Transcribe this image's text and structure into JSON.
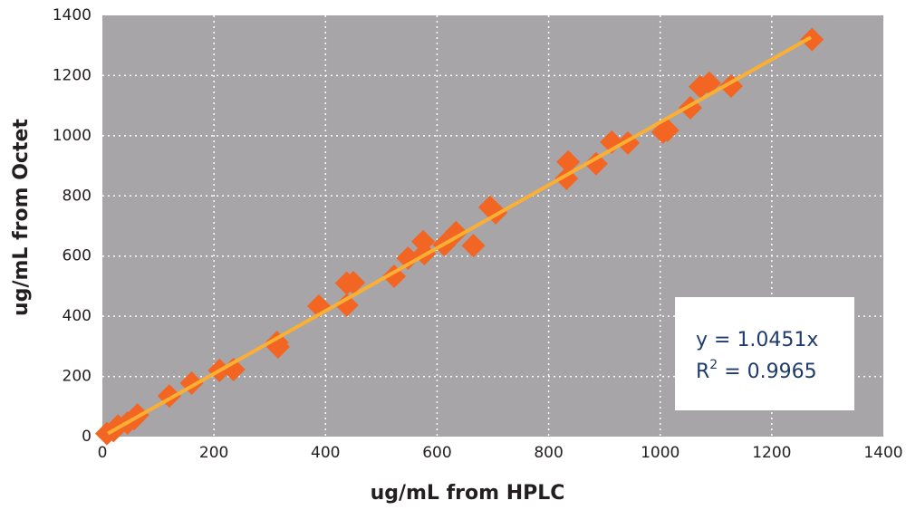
{
  "chart_data": {
    "type": "scatter",
    "xlabel": "ug/mL from HPLC",
    "ylabel": "ug/mL from Octet",
    "x": [
      8,
      20,
      28,
      45,
      57,
      63,
      120,
      160,
      210,
      235,
      313,
      315,
      388,
      438,
      438,
      450,
      523,
      548,
      575,
      577,
      613,
      634,
      665,
      695,
      705,
      832,
      835,
      885,
      913,
      942,
      1005,
      1013,
      1054,
      1072,
      1088,
      1127,
      1272
    ],
    "series": [
      {
        "color": "#f26522",
        "values": [
          10,
          20,
          35,
          45,
          60,
          72,
          135,
          178,
          220,
          223,
          313,
          298,
          434,
          437,
          510,
          512,
          533,
          593,
          648,
          608,
          638,
          678,
          635,
          762,
          744,
          858,
          913,
          907,
          979,
          976,
          1012,
          1018,
          1093,
          1163,
          1175,
          1165,
          1320
        ]
      }
    ],
    "trendline": {
      "color": "#fbb034",
      "x": [
        10,
        1270
      ],
      "y": [
        10.5,
        1327
      ]
    },
    "annotation": {
      "line1": "y = 1.0451x",
      "r": "R",
      "sup": "2",
      "rest": " = 0.9965"
    },
    "xlim": [
      0,
      1400
    ],
    "ylim": [
      0,
      1400
    ],
    "xticks": [
      0,
      200,
      400,
      600,
      800,
      1000,
      1200,
      1400
    ],
    "yticks": [
      0,
      200,
      400,
      600,
      800,
      1000,
      1200,
      1400
    ],
    "grid": true,
    "background": "#a7a5a8"
  }
}
